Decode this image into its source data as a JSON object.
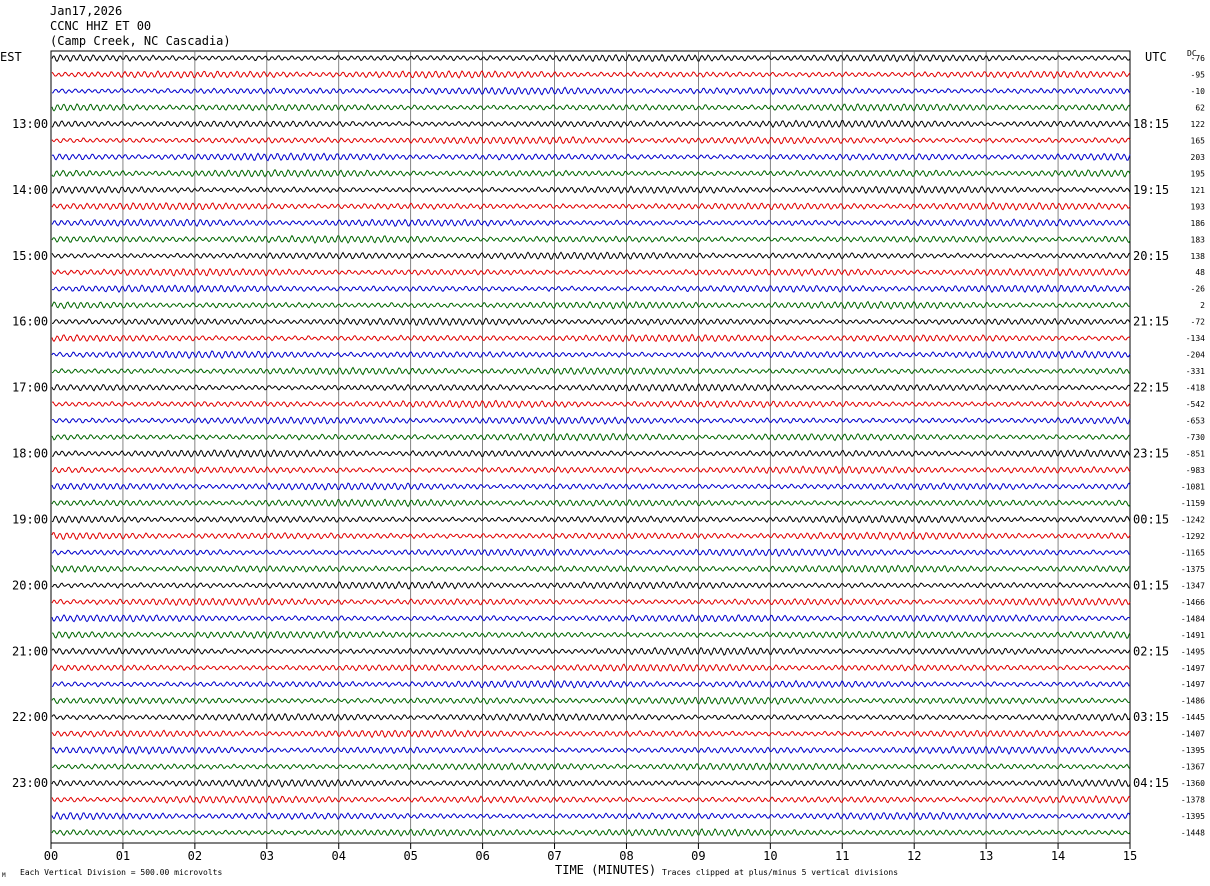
{
  "header": {
    "date": "Jan17,2026",
    "station": "CCNC HHZ ET 00",
    "location": "(Camp Creek, NC Cascadia)"
  },
  "left_tz": "EST",
  "right_tz": "UTC",
  "dc_label": "DC",
  "footer": {
    "scale_note": "Each Vertical Division =  500.00 microvolts",
    "xlabel": "TIME (MINUTES)",
    "clip_note": "Traces clipped at plus/minus 5 vertical divisions",
    "corner_mark": "M"
  },
  "chart_data": {
    "type": "line",
    "title": "CCNC HHZ ET 00 (Camp Creek, NC Cascadia)",
    "xlabel": "TIME (MINUTES)",
    "x_ticks": [
      "00",
      "01",
      "02",
      "03",
      "04",
      "05",
      "06",
      "07",
      "08",
      "09",
      "10",
      "11",
      "12",
      "13",
      "14",
      "15"
    ],
    "xlim": [
      0,
      15
    ],
    "grid": "vertical lines every minute",
    "trace_colors": [
      "#000000",
      "#e00000",
      "#0000cc",
      "#006600"
    ],
    "left_hour_labels": [
      "13:00",
      "14:00",
      "15:00",
      "16:00",
      "17:00",
      "18:00",
      "19:00",
      "20:00",
      "21:00",
      "22:00",
      "23:00"
    ],
    "right_hour_labels": [
      "18:15",
      "19:15",
      "20:15",
      "21:15",
      "22:15",
      "23:15",
      "00:15",
      "01:15",
      "02:15",
      "03:15",
      "04:15"
    ],
    "dc_offsets": [
      -76,
      -95,
      -10,
      62,
      122,
      165,
      203,
      195,
      121,
      193,
      186,
      183,
      138,
      48,
      -26,
      2,
      -72,
      -134,
      -204,
      -331,
      -418,
      -542,
      -653,
      -730,
      -851,
      -983,
      -1081,
      -1159,
      -1242,
      -1292,
      -1165,
      -1375,
      -1347,
      -1466,
      -1484,
      -1491,
      -1495,
      -1497,
      -1497,
      -1486,
      -1445,
      -1407,
      -1395,
      -1367,
      -1360,
      -1378,
      -1395,
      -1448
    ],
    "traces_count": 48
  }
}
